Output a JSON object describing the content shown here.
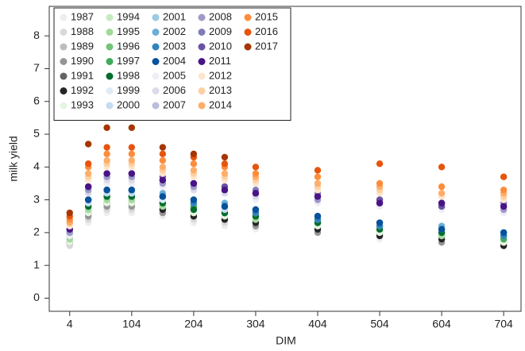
{
  "chart_data": {
    "type": "scatter",
    "x_label": "DIM",
    "y_label": "milk yield",
    "xlim": [
      -29,
      732
    ],
    "ylim": [
      -0.4,
      8.9
    ],
    "xticks": [
      4,
      104,
      204,
      304,
      404,
      504,
      604,
      704
    ],
    "yticks": [
      0,
      1,
      2,
      3,
      4,
      5,
      6,
      7,
      8
    ],
    "legend": "top-left",
    "x": [
      4,
      34,
      64,
      104,
      154,
      204,
      254,
      304,
      404,
      504,
      604,
      704
    ],
    "series": [
      {
        "name": "1987",
        "color": "#eeeeee",
        "values": [
          1.6,
          2.3,
          2.6,
          2.6,
          2.5,
          2.3,
          2.2,
          2.1,
          2.0,
          1.8,
          1.7,
          1.6
        ]
      },
      {
        "name": "1988",
        "color": "#d9d9d9",
        "values": [
          1.6,
          2.4,
          2.7,
          2.7,
          2.6,
          2.4,
          2.3,
          2.2,
          2.1,
          1.9,
          1.8,
          1.6
        ]
      },
      {
        "name": "1989",
        "color": "#bdbdbd",
        "values": [
          1.7,
          2.5,
          2.8,
          2.8,
          2.7,
          2.5,
          2.4,
          2.3,
          2.1,
          2.0,
          1.8,
          1.7
        ]
      },
      {
        "name": "1990",
        "color": "#969696",
        "values": [
          1.7,
          2.5,
          2.8,
          2.8,
          2.6,
          2.5,
          2.4,
          2.2,
          2.0,
          1.9,
          1.7,
          1.6
        ]
      },
      {
        "name": "1991",
        "color": "#636363",
        "values": [
          1.7,
          2.6,
          2.9,
          2.9,
          2.8,
          2.6,
          2.5,
          2.4,
          2.2,
          2.0,
          1.9,
          1.7
        ]
      },
      {
        "name": "1992",
        "color": "#252525",
        "values": [
          1.7,
          2.6,
          2.9,
          2.9,
          2.7,
          2.5,
          2.4,
          2.3,
          2.1,
          1.9,
          1.8,
          1.6
        ]
      },
      {
        "name": "1993",
        "color": "#e5f5e0",
        "values": [
          1.7,
          2.6,
          2.9,
          2.9,
          2.8,
          2.6,
          2.5,
          2.4,
          2.2,
          2.0,
          1.9,
          1.7
        ]
      },
      {
        "name": "1994",
        "color": "#c7e9c0",
        "values": [
          1.8,
          2.7,
          3.0,
          3.0,
          2.9,
          2.7,
          2.6,
          2.5,
          2.3,
          2.1,
          2.0,
          1.8
        ]
      },
      {
        "name": "1995",
        "color": "#a1d99b",
        "values": [
          1.8,
          2.7,
          3.0,
          3.0,
          2.8,
          2.7,
          2.6,
          2.4,
          2.3,
          2.1,
          1.9,
          1.8
        ]
      },
      {
        "name": "1996",
        "color": "#74c476",
        "values": [
          1.9,
          2.8,
          3.1,
          3.1,
          2.9,
          2.8,
          2.7,
          2.5,
          2.4,
          2.2,
          2.0,
          1.9
        ]
      },
      {
        "name": "1997",
        "color": "#41ab5d",
        "values": [
          1.9,
          2.8,
          3.1,
          3.1,
          3.0,
          2.8,
          2.6,
          2.5,
          2.3,
          2.2,
          2.0,
          1.8
        ]
      },
      {
        "name": "1998",
        "color": "#006d2c",
        "values": [
          1.9,
          2.8,
          3.1,
          3.1,
          2.9,
          2.7,
          2.6,
          2.5,
          2.3,
          2.1,
          2.0,
          1.9
        ]
      },
      {
        "name": "1999",
        "color": "#deebf7",
        "values": [
          1.9,
          2.9,
          3.2,
          3.2,
          3.0,
          2.9,
          2.8,
          2.6,
          2.4,
          2.2,
          2.1,
          1.9
        ]
      },
      {
        "name": "2000",
        "color": "#c6dbef",
        "values": [
          1.9,
          2.9,
          3.2,
          3.2,
          3.1,
          2.9,
          2.7,
          2.6,
          2.4,
          2.3,
          2.1,
          2.0
        ]
      },
      {
        "name": "2001",
        "color": "#9ecae1",
        "values": [
          2.0,
          3.0,
          3.3,
          3.3,
          3.1,
          3.0,
          2.8,
          2.7,
          2.5,
          2.3,
          2.1,
          2.0
        ]
      },
      {
        "name": "2002",
        "color": "#6baed6",
        "values": [
          2.0,
          3.0,
          3.3,
          3.3,
          3.2,
          3.0,
          2.9,
          2.7,
          2.5,
          2.3,
          2.2,
          2.0
        ]
      },
      {
        "name": "2003",
        "color": "#3182bd",
        "values": [
          2.0,
          3.0,
          3.3,
          3.3,
          3.1,
          2.9,
          2.8,
          2.6,
          2.4,
          2.2,
          2.1,
          1.9
        ]
      },
      {
        "name": "2004",
        "color": "#08519c",
        "values": [
          2.0,
          3.0,
          3.3,
          3.3,
          3.1,
          3.0,
          2.8,
          2.7,
          2.5,
          2.3,
          2.1,
          2.0
        ]
      },
      {
        "name": "2005",
        "color": "#efedf5",
        "values": [
          1.9,
          3.2,
          3.5,
          3.5,
          3.4,
          3.3,
          3.2,
          3.0,
          2.9,
          2.8,
          2.7,
          2.6
        ]
      },
      {
        "name": "2006",
        "color": "#dadaeb",
        "values": [
          2.0,
          3.2,
          3.6,
          3.6,
          3.5,
          3.3,
          3.2,
          3.1,
          3.0,
          2.9,
          2.8,
          2.7
        ]
      },
      {
        "name": "2007",
        "color": "#bcbddc",
        "values": [
          2.0,
          3.3,
          3.7,
          3.7,
          3.6,
          3.4,
          3.3,
          3.2,
          3.1,
          3.0,
          2.8,
          2.8
        ]
      },
      {
        "name": "2008",
        "color": "#9e9ac8",
        "values": [
          2.0,
          3.3,
          3.7,
          3.7,
          3.5,
          3.4,
          3.3,
          3.2,
          3.0,
          2.9,
          2.8,
          2.7
        ]
      },
      {
        "name": "2009",
        "color": "#807dba",
        "values": [
          2.1,
          3.4,
          3.8,
          3.8,
          3.6,
          3.5,
          3.4,
          3.3,
          3.2,
          3.0,
          2.9,
          2.9
        ]
      },
      {
        "name": "2010",
        "color": "#6a51a3",
        "values": [
          2.1,
          3.4,
          3.8,
          3.8,
          3.7,
          3.5,
          3.4,
          3.2,
          3.1,
          3.0,
          2.8,
          2.8
        ]
      },
      {
        "name": "2011",
        "color": "#4a1486",
        "values": [
          2.1,
          3.4,
          3.8,
          3.8,
          3.6,
          3.5,
          3.3,
          3.2,
          3.1,
          2.9,
          2.9,
          2.8
        ]
      },
      {
        "name": "2012",
        "color": "#fee6ce",
        "values": [
          2.2,
          3.6,
          4.0,
          4.0,
          3.8,
          3.7,
          3.6,
          3.5,
          3.3,
          3.2,
          3.1,
          3.0
        ]
      },
      {
        "name": "2013",
        "color": "#fdd0a2",
        "values": [
          2.3,
          3.7,
          4.1,
          4.1,
          3.9,
          3.8,
          3.7,
          3.6,
          3.4,
          3.3,
          3.2,
          3.1
        ]
      },
      {
        "name": "2014",
        "color": "#fdae6b",
        "values": [
          2.3,
          3.8,
          4.2,
          4.2,
          4.0,
          3.9,
          3.8,
          3.7,
          3.5,
          3.4,
          3.2,
          3.2
        ]
      },
      {
        "name": "2015",
        "color": "#fd8d3c",
        "values": [
          2.4,
          4.0,
          4.4,
          4.4,
          4.2,
          4.1,
          4.0,
          3.8,
          3.7,
          3.5,
          3.4,
          3.3
        ]
      },
      {
        "name": "2016",
        "color": "#e6550d",
        "values": [
          2.5,
          4.1,
          4.6,
          4.6,
          4.4,
          4.3,
          4.1,
          4.0,
          3.9,
          4.1,
          4.0,
          3.7
        ]
      },
      {
        "name": "2017",
        "color": "#a63603",
        "values": [
          2.6,
          4.7,
          5.2,
          5.2,
          4.6,
          4.4,
          4.3,
          null,
          null,
          null,
          null,
          null
        ]
      }
    ]
  }
}
